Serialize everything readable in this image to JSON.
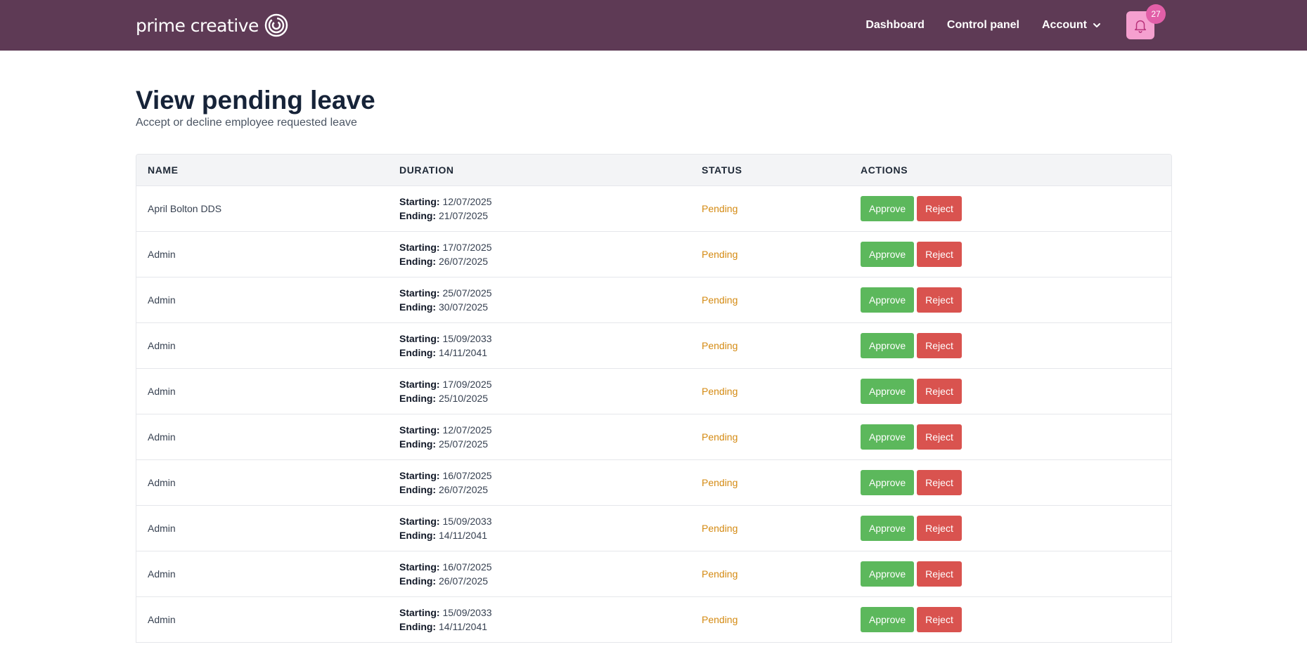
{
  "brand": {
    "name": "prime creative"
  },
  "nav": {
    "items": [
      "Dashboard",
      "Control panel",
      "Account"
    ],
    "notification_count": "27"
  },
  "page": {
    "title": "View pending leave",
    "subtitle": "Accept or decline employee requested leave"
  },
  "table": {
    "headers": [
      "NAME",
      "DURATION",
      "STATUS",
      "ACTIONS"
    ],
    "starting_label": "Starting:",
    "ending_label": "Ending:",
    "approve_label": "Approve",
    "reject_label": "Reject",
    "rows": [
      {
        "name": "April Bolton DDS",
        "start": "12/07/2025",
        "end": "21/07/2025",
        "status": "Pending"
      },
      {
        "name": "Admin",
        "start": "17/07/2025",
        "end": "26/07/2025",
        "status": "Pending"
      },
      {
        "name": "Admin",
        "start": "25/07/2025",
        "end": "30/07/2025",
        "status": "Pending"
      },
      {
        "name": "Admin",
        "start": "15/09/2033",
        "end": "14/11/2041",
        "status": "Pending"
      },
      {
        "name": "Admin",
        "start": "17/09/2025",
        "end": "25/10/2025",
        "status": "Pending"
      },
      {
        "name": "Admin",
        "start": "12/07/2025",
        "end": "25/07/2025",
        "status": "Pending"
      },
      {
        "name": "Admin",
        "start": "16/07/2025",
        "end": "26/07/2025",
        "status": "Pending"
      },
      {
        "name": "Admin",
        "start": "15/09/2033",
        "end": "14/11/2041",
        "status": "Pending"
      },
      {
        "name": "Admin",
        "start": "16/07/2025",
        "end": "26/07/2025",
        "status": "Pending"
      },
      {
        "name": "Admin",
        "start": "15/09/2033",
        "end": "14/11/2041",
        "status": "Pending"
      }
    ]
  },
  "colors": {
    "topbar": "#5e3a55",
    "approve": "#5cb85c",
    "reject": "#d9534f",
    "pending": "#d48a12",
    "bell_bg": "#f5a0cf",
    "badge": "#e25fa8"
  },
  "icons": [
    "brand-logo-icon",
    "bell-icon",
    "chevron-down-icon"
  ]
}
